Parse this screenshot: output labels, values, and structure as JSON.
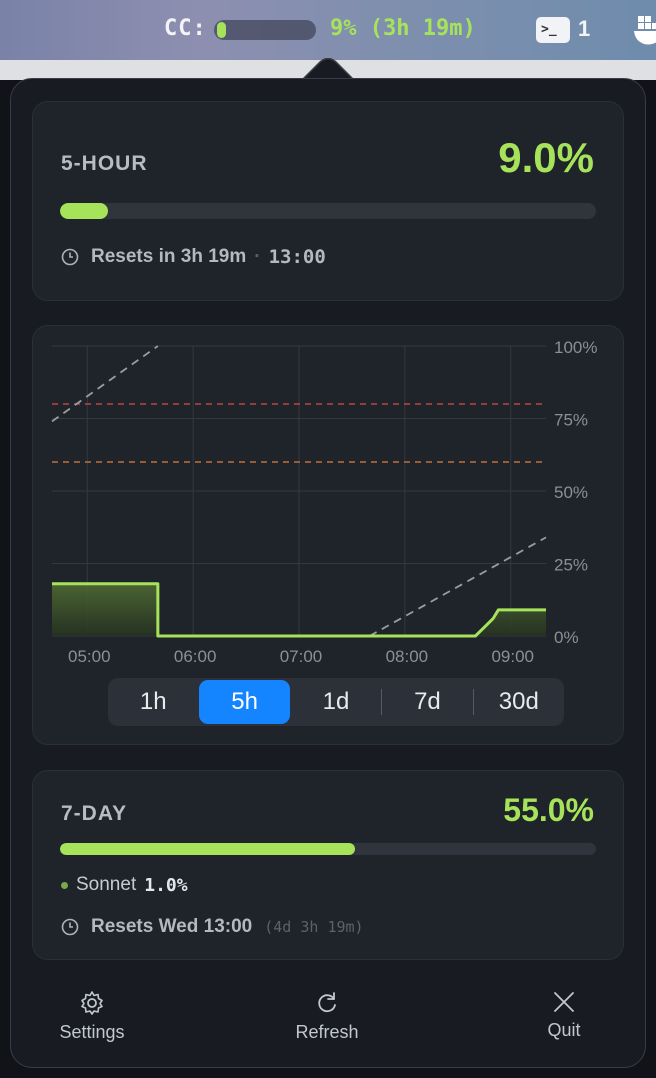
{
  "menubar": {
    "cc_label": "CC:",
    "cc_fill": 0.09,
    "cc_status": "9% (3h 19m)",
    "terminal_glyph": ">_",
    "terminal_count": "1"
  },
  "five_hour": {
    "title": "5-HOUR",
    "percent": "9.0%",
    "fill": 0.09,
    "reset_label": "Resets in 3h 19m",
    "separator": "·",
    "reset_time": "13:00"
  },
  "chart": {
    "y_ticks": [
      "100%",
      "75%",
      "50%",
      "25%",
      "0%"
    ],
    "x_ticks": [
      "05:00",
      "06:00",
      "07:00",
      "08:00",
      "09:00"
    ],
    "colors": {
      "line": "#a7e35a",
      "threshold_high": "#c0453f",
      "threshold_mid": "#c0703a",
      "projection": "#9a9ca2"
    }
  },
  "chart_data": {
    "type": "line",
    "x_ticks": [
      "05:00",
      "06:00",
      "07:00",
      "08:00",
      "09:00"
    ],
    "yticks": [
      "0%",
      "25%",
      "50%",
      "75%",
      "100%"
    ],
    "ylim": [
      0,
      100
    ],
    "series": [
      {
        "values": [
          {
            "t": "04:40",
            "y": 18
          },
          {
            "t": "05:40",
            "y": 18
          },
          {
            "t": "05:40",
            "y": 0
          },
          {
            "t": "08:40",
            "y": 0
          },
          {
            "t": "08:45",
            "y": 3
          },
          {
            "t": "08:50",
            "y": 6
          },
          {
            "t": "08:53",
            "y": 9
          },
          {
            "t": "09:20",
            "y": 9
          }
        ]
      }
    ],
    "reference_lines": [
      80,
      60
    ],
    "projection_lines": [
      [
        {
          "t": "04:40",
          "y": 74
        },
        {
          "t": "05:40",
          "y": 100
        }
      ],
      [
        {
          "t": "07:40",
          "y": 0
        },
        {
          "t": "09:20",
          "y": 34
        }
      ]
    ],
    "grid": true
  },
  "range_selector": {
    "options": [
      "1h",
      "5h",
      "1d",
      "7d",
      "30d"
    ],
    "selected": "5h"
  },
  "seven_day": {
    "title": "7-DAY",
    "percent": "55.0%",
    "fill": 0.55,
    "model_label": "Sonnet",
    "model_value": "1.0%",
    "reset_label": "Resets Wed 13:00",
    "reset_countdown": "(4d 3h 19m)"
  },
  "footer": {
    "settings": "Settings",
    "refresh": "Refresh",
    "quit": "Quit"
  }
}
